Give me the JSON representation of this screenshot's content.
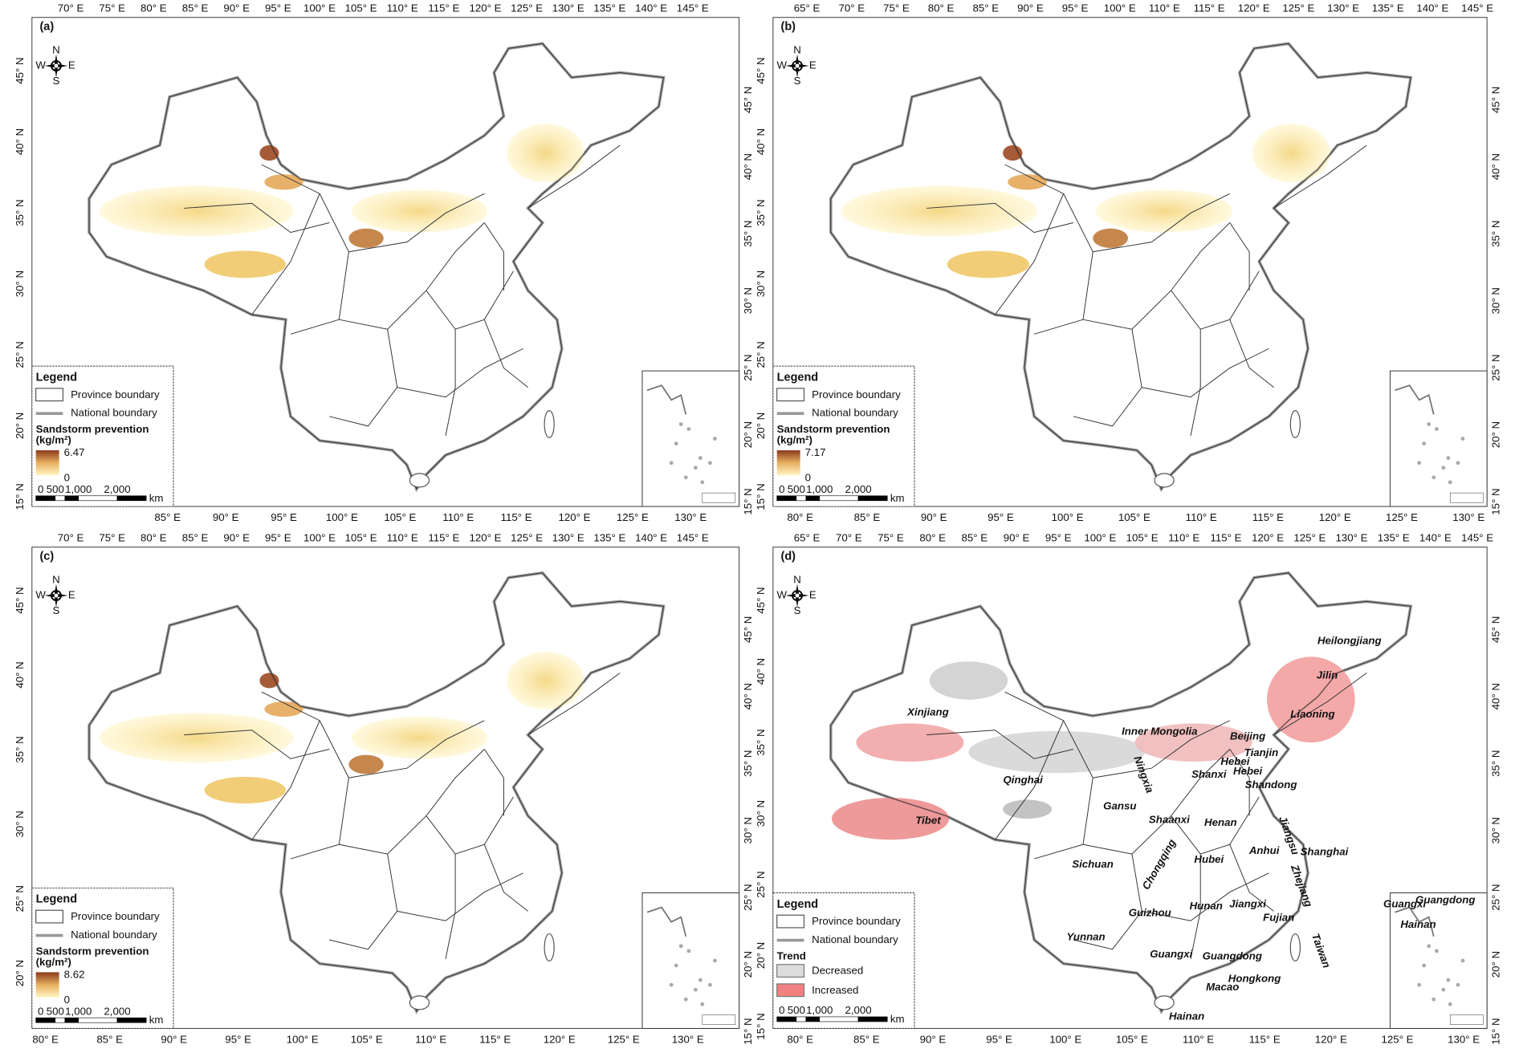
{
  "compass": {
    "n": "N",
    "e": "E",
    "s": "S",
    "w": "W"
  },
  "panels": [
    {
      "label": "(a)",
      "ticks": {
        "top": [
          "70° E",
          "75° E",
          "80° E",
          "85° E",
          "90° E",
          "95° E",
          "100° E",
          "105° E",
          "110° E",
          "115° E",
          "120° E",
          "125° E",
          "130° E",
          "135° E",
          "140° E",
          "145° E"
        ],
        "bottom": [
          "85° E",
          "90° E",
          "95° E",
          "100° E",
          "105° E",
          "110° E",
          "115° E",
          "120° E",
          "125° E",
          "130° E"
        ],
        "left": [
          "45° N",
          "40° N",
          "35° N",
          "30° N",
          "25° N",
          "20° N",
          "15° N"
        ],
        "right": [
          "45° N",
          "40° N",
          "35° N",
          "30° N",
          "25° N",
          "20° N",
          "15° N"
        ]
      },
      "legend": {
        "title": "Legend",
        "province": "Province boundary",
        "national": "National boundary",
        "layer_title": "Sandstorm prevention",
        "unit": "(kg/m²)",
        "max": 6.47,
        "min": 0,
        "scale": [
          "0",
          "500",
          "1,000",
          "2,000"
        ],
        "scale_unit": "km"
      }
    },
    {
      "label": "(b)",
      "ticks": {
        "top": [
          "65° E",
          "70° E",
          "75° E",
          "80° E",
          "85° E",
          "90° E",
          "95° E",
          "100° E",
          "110° E",
          "115° E",
          "120° E",
          "125° E",
          "130° E",
          "135° E",
          "140° E",
          "145° E"
        ],
        "bottom": [
          "80° E",
          "85° E",
          "90° E",
          "95° E",
          "100° E",
          "105° E",
          "110° E",
          "115° E",
          "120° E",
          "125° E",
          "130° E"
        ],
        "left": [
          "45° N",
          "40° N",
          "35° N",
          "30° N",
          "25° N",
          "20° N",
          "15° N"
        ],
        "right": [
          "45° N",
          "40° N",
          "35° N",
          "30° N",
          "25° N",
          "20° N",
          "15° N"
        ]
      },
      "legend": {
        "title": "Legend",
        "province": "Province boundary",
        "national": "National boundary",
        "layer_title": "Sandstorm prevention",
        "unit": "(kg/m²)",
        "max": 7.17,
        "min": 0,
        "scale": [
          "0",
          "500",
          "1,000",
          "2,000"
        ],
        "scale_unit": "km"
      }
    },
    {
      "label": "(c)",
      "ticks": {
        "top": [
          "70° E",
          "75° E",
          "80° E",
          "85° E",
          "90° E",
          "95° E",
          "100° E",
          "105° E",
          "110° E",
          "115° E",
          "120° E",
          "125° E",
          "130° E",
          "135° E",
          "140° E",
          "145° E"
        ],
        "bottom": [
          "80° E",
          "85° E",
          "90° E",
          "95° E",
          "100° E",
          "105° E",
          "110° E",
          "115° E",
          "120° E",
          "125° E",
          "130° E"
        ],
        "left": [
          "45° N",
          "40° N",
          "35° N",
          "30° N",
          "25° N",
          "20° N"
        ],
        "right": [
          "45° N",
          "40° N",
          "35° N",
          "30° N",
          "25° N",
          "20° N",
          "15° N"
        ]
      },
      "legend": {
        "title": "Legend",
        "province": "Province boundary",
        "national": "National boundary",
        "layer_title": "Sandstorm prevention",
        "unit": "(kg/m²)",
        "max": 8.62,
        "min": 0,
        "scale": [
          "0",
          "500",
          "1,000",
          "2,000"
        ],
        "scale_unit": "km"
      }
    },
    {
      "label": "(d)",
      "ticks": {
        "top": [
          "65° E",
          "70° E",
          "75° E",
          "80° E",
          "85° E",
          "90° E",
          "95° E",
          "100° E",
          "105° E",
          "110° E",
          "115° E",
          "120° E",
          "125° E",
          "130° E",
          "135° E",
          "140° E",
          "145° E"
        ],
        "bottom": [
          "80° E",
          "85° E",
          "90° E",
          "95° E",
          "100° E",
          "105° E",
          "110° E",
          "115° E",
          "120° E",
          "125° E",
          "130° E"
        ],
        "left": [
          "45° N",
          "40° N",
          "35° N",
          "30° N",
          "25° N",
          "20° N",
          "15° N"
        ],
        "right": [
          "45° N",
          "40° N",
          "35° N",
          "30° N",
          "25° N",
          "20° N",
          "15° N"
        ]
      },
      "legend": {
        "title": "Legend",
        "province": "Province boundary",
        "national": "National boundary",
        "trend": "Trend",
        "decreased": "Decreased",
        "increased": "Increased",
        "scale": [
          "0",
          "500",
          "1,000",
          "2,000"
        ],
        "scale_unit": "km"
      },
      "regions": [
        "Xinjiang",
        "Inner Mongolia",
        "Heilongjiang",
        "Jilin",
        "Liaoning",
        "Beijing",
        "Tianjin",
        "Hebei",
        "Hebei",
        "Qinghai",
        "Ningxia",
        "Shanxi",
        "Shandong",
        "Gansu",
        "Tibet",
        "Shaanxi",
        "Henan",
        "Jiangsu",
        "Anhui",
        "Shanghai",
        "Sichuan",
        "Chongqing",
        "Hubei",
        "Zhejiang",
        "Guizhou",
        "Hunan",
        "Jiangxi",
        "Fujian",
        "Yunnan",
        "Taiwan",
        "Guangxi",
        "Guangdong",
        "Hongkong",
        "Macao",
        "Hainan"
      ],
      "inset_regions": [
        "Guangxi",
        "Guangdong",
        "Hainan"
      ]
    }
  ]
}
